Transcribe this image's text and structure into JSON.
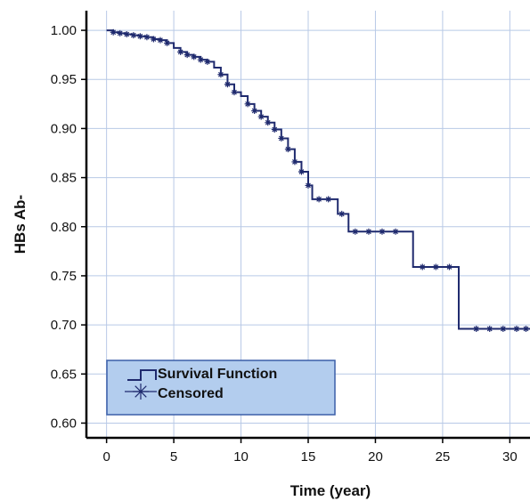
{
  "chart_data": {
    "type": "line",
    "xlabel": "Time (year)",
    "ylabel": "HBs Ab-",
    "xlim": [
      -1.5,
      31.5
    ],
    "ylim": [
      0.585,
      1.02
    ],
    "x_ticks": [
      0,
      5,
      10,
      15,
      20,
      25,
      30
    ],
    "x_tick_labels": [
      "0",
      "5",
      "10",
      "15",
      "20",
      "25",
      "30"
    ],
    "y_ticks": [
      0.6,
      0.65,
      0.7,
      0.75,
      0.8,
      0.85,
      0.9,
      0.95,
      1.0
    ],
    "y_tick_labels": [
      "0.60",
      "0.65",
      "0.70",
      "0.75",
      "0.80",
      "0.85",
      "0.90",
      "0.95",
      "1.00"
    ],
    "grid": true,
    "legend_position": "bottom-left",
    "colors": {
      "line": "#1f2a6e",
      "legend_bg": "#b3cdee",
      "legend_border": "#3b5fa8",
      "grid": "#b8c9e6"
    },
    "series": [
      {
        "name": "Survival Function",
        "type": "step",
        "x": [
          0,
          0.5,
          1,
          1.5,
          2,
          2.5,
          3,
          3.5,
          4,
          4.5,
          5,
          5.5,
          6,
          6.5,
          7,
          7.5,
          8,
          8.5,
          9,
          9.5,
          10,
          10.5,
          11,
          11.5,
          12,
          12.5,
          13,
          13.5,
          14,
          14.5,
          15,
          15.3,
          17.2,
          18,
          22.8,
          26.2,
          31.5
        ],
        "y": [
          1.0,
          0.998,
          0.997,
          0.996,
          0.995,
          0.994,
          0.993,
          0.991,
          0.99,
          0.987,
          0.982,
          0.978,
          0.975,
          0.973,
          0.97,
          0.968,
          0.962,
          0.955,
          0.945,
          0.937,
          0.933,
          0.925,
          0.918,
          0.912,
          0.906,
          0.899,
          0.89,
          0.879,
          0.866,
          0.856,
          0.842,
          0.828,
          0.813,
          0.795,
          0.759,
          0.696,
          0.696
        ]
      },
      {
        "name": "Censored",
        "type": "markers",
        "x": [
          0.5,
          1,
          1.5,
          2,
          2.5,
          3,
          3.5,
          4,
          4.5,
          5.5,
          6,
          6.5,
          7,
          7.5,
          8.5,
          9,
          9.5,
          10.5,
          11,
          11.5,
          12,
          12.5,
          13,
          13.5,
          14,
          14.5,
          15,
          15.8,
          16.5,
          17.5,
          18.5,
          19.5,
          20.5,
          21.5,
          23.5,
          24.5,
          25.5,
          27.5,
          28.5,
          29.5,
          30.5,
          31.2
        ],
        "y": [
          0.998,
          0.997,
          0.996,
          0.995,
          0.994,
          0.993,
          0.991,
          0.99,
          0.987,
          0.978,
          0.975,
          0.973,
          0.97,
          0.968,
          0.955,
          0.945,
          0.937,
          0.925,
          0.918,
          0.912,
          0.906,
          0.899,
          0.89,
          0.879,
          0.866,
          0.856,
          0.842,
          0.828,
          0.828,
          0.813,
          0.795,
          0.795,
          0.795,
          0.795,
          0.759,
          0.759,
          0.759,
          0.696,
          0.696,
          0.696,
          0.696,
          0.696
        ]
      }
    ]
  }
}
